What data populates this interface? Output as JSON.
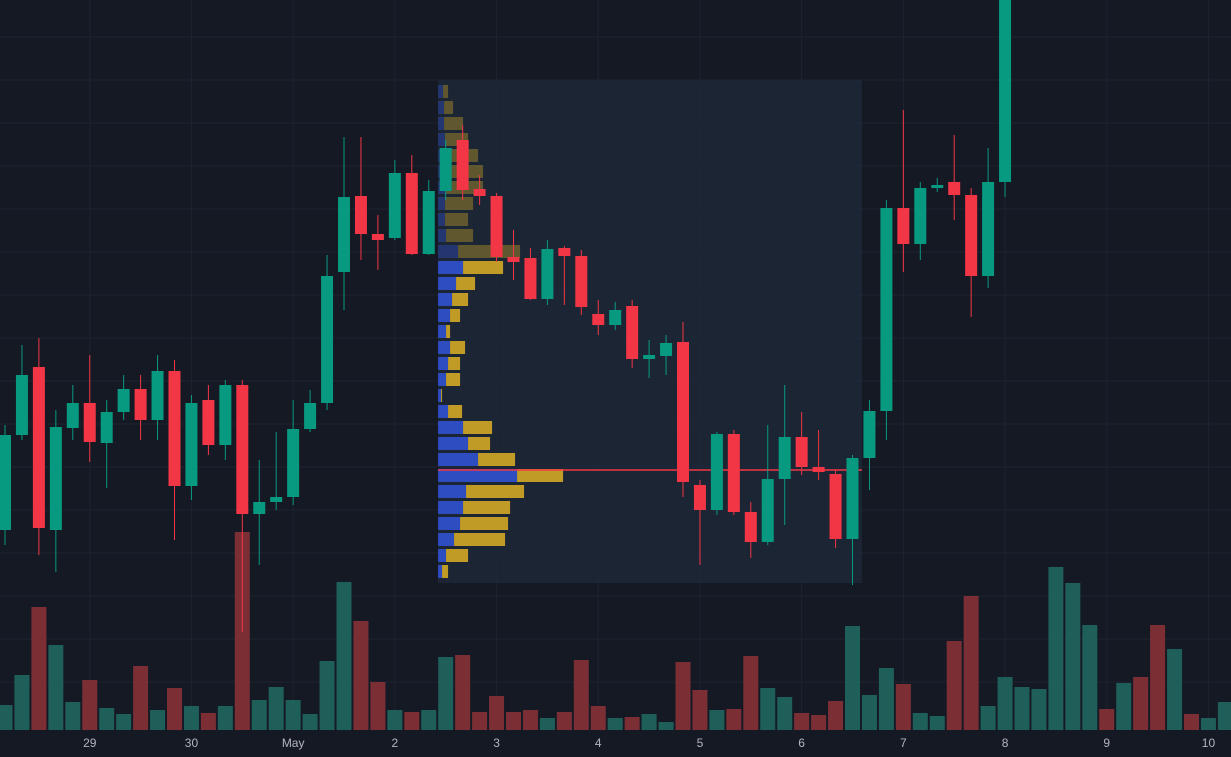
{
  "chart_data": {
    "type": "candlestick",
    "ylim": [
      0,
      757
    ],
    "yticks": [
      720,
      677,
      634,
      591,
      548,
      505,
      462,
      419,
      376,
      333,
      290,
      247,
      204,
      161,
      118,
      75,
      32
    ],
    "grid": true,
    "up_color": "#089981",
    "down_color": "#f23645",
    "xticks": [
      {
        "value": 5,
        "label": "29"
      },
      {
        "value": 11,
        "label": "30"
      },
      {
        "value": 17,
        "label": "May"
      },
      {
        "value": 23,
        "label": "2"
      },
      {
        "value": 29,
        "label": "3"
      },
      {
        "value": 35,
        "label": "4"
      },
      {
        "value": 41,
        "label": "5"
      },
      {
        "value": 47,
        "label": "6"
      },
      {
        "value": 53,
        "label": "7"
      },
      {
        "value": 59,
        "label": "8"
      },
      {
        "value": 65,
        "label": "9"
      },
      {
        "value": 71,
        "label": "10"
      }
    ],
    "open": [
      227,
      322,
      390,
      227,
      329,
      354,
      314,
      345,
      368,
      337,
      386,
      271,
      357,
      312,
      372,
      243,
      255,
      260,
      328,
      354,
      485,
      561,
      523,
      519,
      584,
      503,
      566,
      617,
      568,
      561,
      500,
      499,
      458,
      509,
      501,
      443,
      432,
      451,
      398,
      401,
      415,
      272,
      247,
      323,
      245,
      215,
      278,
      320,
      290,
      283,
      218,
      299,
      346,
      549,
      513,
      569,
      575,
      562,
      481,
      575,
      null,
      null,
      null,
      null,
      null,
      null,
      null,
      null,
      null,
      null,
      null,
      null,
      null
    ],
    "high": [
      332,
      412,
      419,
      347,
      372,
      402,
      357,
      382,
      382,
      402,
      397,
      362,
      372,
      377,
      377,
      297,
      325,
      357,
      367,
      502,
      620,
      620,
      542,
      597,
      602,
      577,
      617,
      632,
      582,
      564,
      527,
      509,
      517,
      511,
      507,
      457,
      455,
      457,
      417,
      422,
      435,
      277,
      325,
      327,
      255,
      332,
      372,
      345,
      327,
      287,
      302,
      357,
      557,
      647,
      575,
      579,
      622,
      569,
      609,
      757,
      null,
      null,
      null,
      null,
      null,
      null,
      null,
      null,
      null,
      null,
      null,
      null,
      null
    ],
    "low": [
      212,
      317,
      202,
      185,
      317,
      295,
      269,
      337,
      317,
      317,
      217,
      257,
      302,
      297,
      125,
      192,
      247,
      252,
      325,
      347,
      447,
      497,
      487,
      517,
      502,
      502,
      557,
      557,
      552,
      495,
      477,
      457,
      452,
      452,
      442,
      422,
      427,
      389,
      379,
      382,
      260,
      192,
      242,
      242,
      199,
      212,
      232,
      282,
      277,
      209,
      172,
      267,
      317,
      485,
      497,
      565,
      537,
      440,
      469,
      560,
      null,
      null,
      null,
      null,
      null,
      null,
      null,
      null,
      null,
      null,
      null,
      null,
      null
    ],
    "close": [
      322,
      382,
      229,
      330,
      354,
      315,
      345,
      368,
      337,
      386,
      271,
      354,
      312,
      372,
      243,
      255,
      260,
      328,
      354,
      481,
      560,
      523,
      517,
      584,
      503,
      566,
      609,
      567,
      561,
      500,
      495,
      458,
      508,
      501,
      450,
      432,
      447,
      398,
      402,
      414,
      275,
      247,
      323,
      245,
      215,
      278,
      320,
      290,
      285,
      218,
      299,
      346,
      549,
      513,
      569,
      572,
      562,
      481,
      575,
      757,
      null,
      null,
      null,
      null,
      null,
      null,
      null,
      null,
      null,
      null,
      null,
      null,
      null
    ],
    "volume_ylim": [
      0,
      200
    ],
    "volume": [
      25,
      55,
      123,
      85,
      28,
      50,
      22,
      16,
      64,
      20,
      42,
      24,
      17,
      24,
      198,
      30,
      43,
      30,
      16,
      69,
      148,
      109,
      48,
      20,
      18,
      20,
      73,
      75,
      18,
      34,
      18,
      20,
      12,
      18,
      70,
      24,
      12,
      13,
      16,
      8,
      68,
      40,
      20,
      21,
      74,
      42,
      33,
      17,
      15,
      29,
      104,
      35,
      62,
      46,
      17,
      14,
      89,
      134,
      24,
      53,
      43,
      41,
      163,
      147,
      105,
      21,
      47,
      53,
      105,
      81,
      16,
      12,
      28
    ],
    "volume_up": [
      true,
      true,
      false,
      true,
      true,
      false,
      true,
      true,
      false,
      true,
      false,
      true,
      false,
      true,
      false,
      true,
      true,
      true,
      true,
      true,
      true,
      false,
      false,
      true,
      false,
      true,
      true,
      false,
      false,
      false,
      false,
      false,
      true,
      false,
      false,
      false,
      true,
      false,
      true,
      true,
      false,
      false,
      true,
      false,
      false,
      true,
      true,
      false,
      false,
      false,
      true,
      true,
      true,
      false,
      true,
      true,
      false,
      false,
      true,
      true,
      true,
      true,
      true,
      true,
      true,
      false,
      true,
      false,
      false,
      true,
      false,
      true,
      true
    ],
    "volume_up_color": "#1f5f59",
    "volume_down_color": "#7b2f35",
    "volume_profile": {
      "levels": [
        665,
        649,
        633,
        617,
        601,
        585,
        569,
        553,
        537,
        521,
        505,
        489,
        473,
        457,
        441,
        425,
        409,
        393,
        377,
        361,
        345,
        329,
        313,
        297,
        281,
        265,
        249,
        233,
        217,
        201,
        185
      ],
      "up": [
        5,
        6,
        6,
        7,
        8,
        8,
        8,
        7,
        7,
        8,
        20,
        25,
        18,
        14,
        12,
        8,
        12,
        10,
        8,
        3,
        10,
        25,
        30,
        40,
        79,
        28,
        25,
        22,
        16,
        8,
        4
      ],
      "down": [
        5,
        9,
        19,
        23,
        32,
        37,
        37,
        28,
        23,
        27,
        62,
        40,
        19,
        16,
        10,
        4,
        15,
        12,
        14,
        1,
        14,
        29,
        22,
        37,
        46,
        58,
        47,
        48,
        51,
        22,
        6
      ],
      "up_color": "#2f4fc9",
      "down_color": "#c9a227",
      "poc": 287,
      "poc_color": "#f23645",
      "value_area_top": 495,
      "range": {
        "from": 25.55,
        "to": 50.56,
        "high": 677,
        "low": 174
      }
    }
  }
}
